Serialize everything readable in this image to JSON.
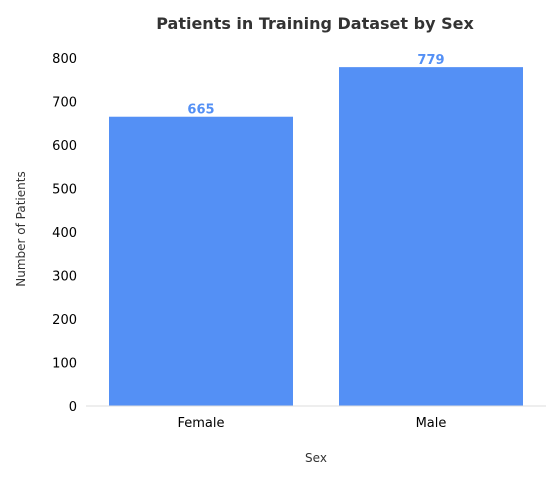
{
  "chart_data": {
    "type": "bar",
    "title": "Patients in Training Dataset by Sex",
    "xlabel": "Sex",
    "ylabel": "Number of Patients",
    "categories": [
      "Female",
      "Male"
    ],
    "values": [
      665,
      779
    ],
    "ylim": [
      0,
      800
    ],
    "yticks": [
      0,
      100,
      200,
      300,
      400,
      500,
      600,
      700,
      800
    ],
    "grid": false,
    "legend": "none",
    "colors": {
      "bar": "#5490f5",
      "data_label": "#5490f5",
      "axis_line": "#dddddd"
    }
  }
}
